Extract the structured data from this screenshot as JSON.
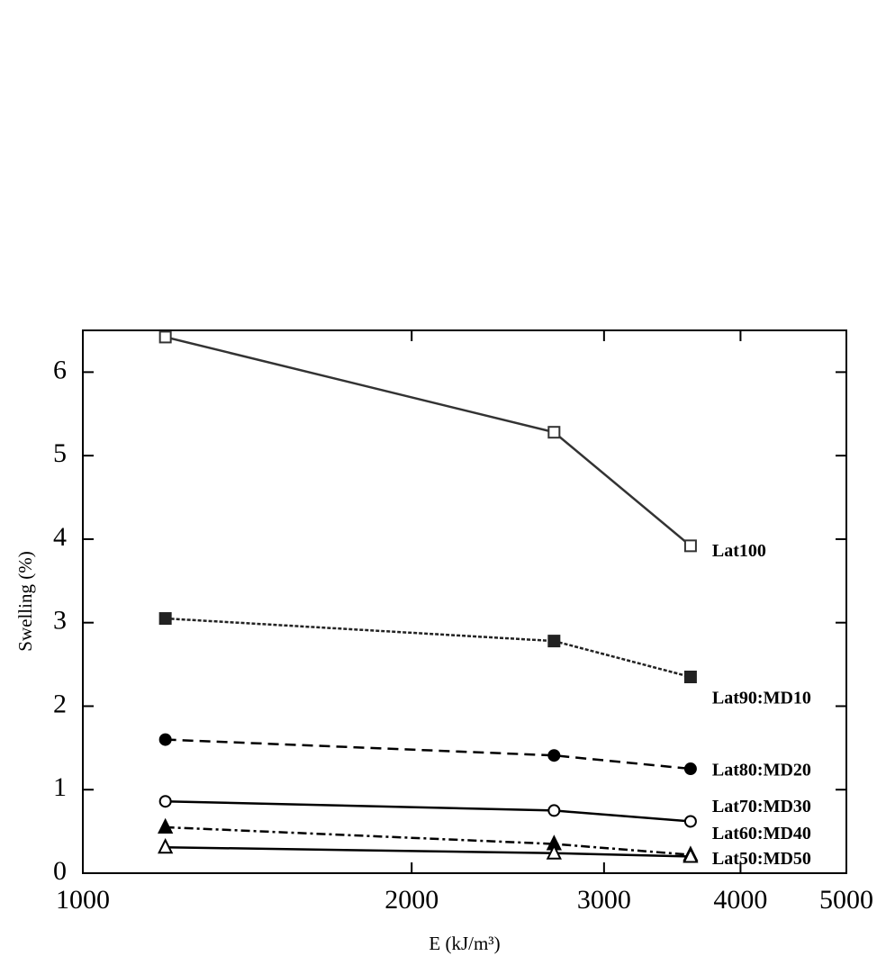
{
  "chart_data": {
    "type": "line",
    "x_label": "E (kJ/m³)",
    "y_label": "Swelling (%)",
    "x": [
      1190,
      2700,
      3600
    ],
    "xlim": [
      1000,
      5000
    ],
    "xticks": [
      1000,
      2000,
      3000,
      4000,
      5000
    ],
    "xscale": "log",
    "ylim": [
      0,
      6.5
    ],
    "yticks": [
      0,
      1,
      2,
      3,
      4,
      5,
      6
    ],
    "series": [
      {
        "name": "Lat100",
        "color": "#333333",
        "marker": "square-open",
        "dash": "solid",
        "values": [
          6.42,
          5.28,
          3.92
        ]
      },
      {
        "name": "Lat90:MD10",
        "color": "#222222",
        "marker": "square-filled",
        "dash": "dotted",
        "values": [
          3.05,
          2.78,
          2.35
        ]
      },
      {
        "name": "Lat80:MD20",
        "color": "#000000",
        "marker": "circle-filled",
        "dash": "dashed",
        "values": [
          1.6,
          1.41,
          1.25
        ]
      },
      {
        "name": "Lat70:MD30",
        "color": "#000000",
        "marker": "circle-open",
        "dash": "solid",
        "values": [
          0.86,
          0.75,
          0.62
        ]
      },
      {
        "name": "Lat60:MD40",
        "color": "#000000",
        "marker": "triangle-filled",
        "dash": "dashdot",
        "values": [
          0.55,
          0.35,
          0.22
        ]
      },
      {
        "name": "Lat50:MD50",
        "color": "#000000",
        "marker": "triangle-open",
        "dash": "solid",
        "values": [
          0.31,
          0.24,
          0.2
        ]
      }
    ]
  }
}
